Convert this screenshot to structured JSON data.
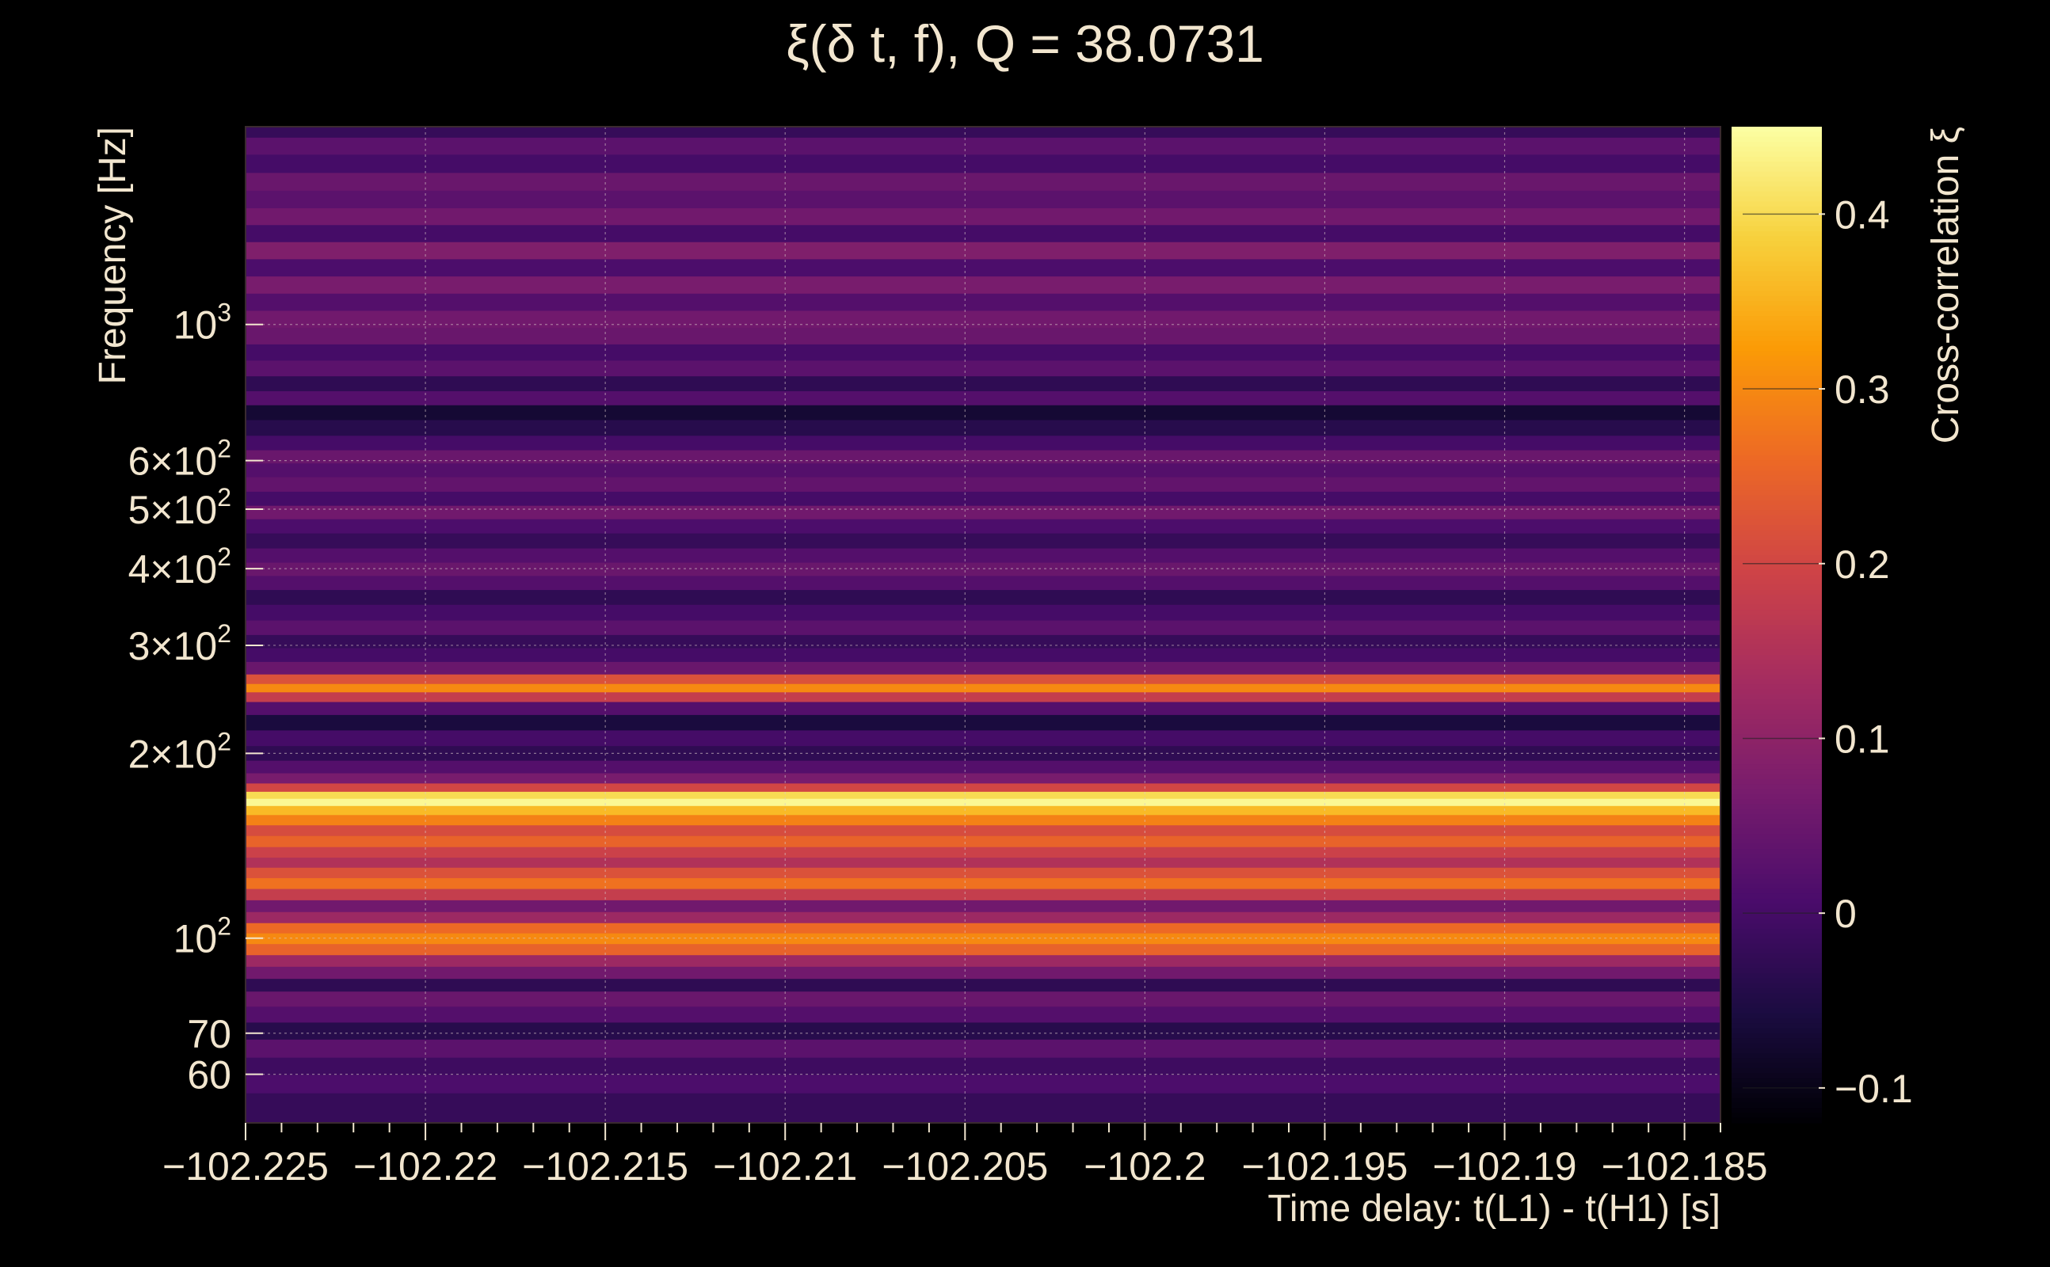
{
  "chart_data": {
    "type": "heatmap",
    "title": "ξ(δ t, f), Q = 38.0731",
    "xlabel": "Time delay: t(L1) - t(H1) [s]",
    "ylabel": "Frequency [Hz]",
    "colorbar_label": "Cross-correlation ξ",
    "xlim": [
      -102.225,
      -102.184
    ],
    "ylim": [
      50,
      2100
    ],
    "yscale": "log",
    "grid": true,
    "x_ticks": [
      {
        "value": -102.225,
        "label": "−102.225"
      },
      {
        "value": -102.22,
        "label": "−102.22"
      },
      {
        "value": -102.215,
        "label": "−102.215"
      },
      {
        "value": -102.21,
        "label": "−102.21"
      },
      {
        "value": -102.205,
        "label": "−102.205"
      },
      {
        "value": -102.2,
        "label": "−102.2"
      },
      {
        "value": -102.195,
        "label": "−102.195"
      },
      {
        "value": -102.19,
        "label": "−102.19"
      },
      {
        "value": -102.185,
        "label": "−102.185"
      }
    ],
    "y_ticks": [
      {
        "value": 60,
        "label": "60"
      },
      {
        "value": 70,
        "label": "70"
      },
      {
        "value": 100,
        "base": "10",
        "exp": "2"
      },
      {
        "value": 200,
        "base": "2×10",
        "exp": "2"
      },
      {
        "value": 300,
        "base": "3×10",
        "exp": "2"
      },
      {
        "value": 400,
        "base": "4×10",
        "exp": "2"
      },
      {
        "value": 500,
        "base": "5×10",
        "exp": "2"
      },
      {
        "value": 600,
        "base": "6×10",
        "exp": "2"
      },
      {
        "value": 1000,
        "base": "10",
        "exp": "3"
      }
    ],
    "colorbar": {
      "range": [
        -0.12,
        0.45
      ],
      "ticks": [
        {
          "value": -0.1,
          "label": "−0.1"
        },
        {
          "value": 0,
          "label": "0"
        },
        {
          "value": 0.1,
          "label": "0.1"
        },
        {
          "value": 0.2,
          "label": "0.2"
        },
        {
          "value": 0.3,
          "label": "0.3"
        },
        {
          "value": 0.4,
          "label": "0.4"
        }
      ],
      "colors": [
        "#000004",
        "#1b0c41",
        "#4a0c6b",
        "#781c6d",
        "#a52c60",
        "#cf4446",
        "#ed6925",
        "#fb9b06",
        "#f7d13d",
        "#fcffa4"
      ]
    },
    "frequency_bands": [
      {
        "f": 54,
        "v": -0.02
      },
      {
        "f": 58,
        "v": 0.01
      },
      {
        "f": 62,
        "v": -0.01
      },
      {
        "f": 66,
        "v": 0.03
      },
      {
        "f": 71,
        "v": -0.04
      },
      {
        "f": 75,
        "v": 0.02
      },
      {
        "f": 80,
        "v": 0.05
      },
      {
        "f": 84,
        "v": -0.03
      },
      {
        "f": 88,
        "v": 0.06
      },
      {
        "f": 92,
        "v": 0.12
      },
      {
        "f": 96,
        "v": 0.25
      },
      {
        "f": 100,
        "v": 0.3
      },
      {
        "f": 104,
        "v": 0.26
      },
      {
        "f": 108,
        "v": 0.12
      },
      {
        "f": 113,
        "v": 0.06
      },
      {
        "f": 118,
        "v": 0.18
      },
      {
        "f": 123,
        "v": 0.27
      },
      {
        "f": 128,
        "v": 0.22
      },
      {
        "f": 133,
        "v": 0.15
      },
      {
        "f": 138,
        "v": 0.19
      },
      {
        "f": 144,
        "v": 0.25
      },
      {
        "f": 150,
        "v": 0.21
      },
      {
        "f": 156,
        "v": 0.29
      },
      {
        "f": 162,
        "v": 0.36
      },
      {
        "f": 167,
        "v": 0.44
      },
      {
        "f": 171,
        "v": 0.4
      },
      {
        "f": 176,
        "v": 0.2
      },
      {
        "f": 182,
        "v": 0.07
      },
      {
        "f": 190,
        "v": 0.02
      },
      {
        "f": 200,
        "v": -0.03
      },
      {
        "f": 212,
        "v": 0.0
      },
      {
        "f": 225,
        "v": -0.06
      },
      {
        "f": 238,
        "v": 0.02
      },
      {
        "f": 248,
        "v": 0.18
      },
      {
        "f": 256,
        "v": 0.3
      },
      {
        "f": 264,
        "v": 0.22
      },
      {
        "f": 275,
        "v": 0.05
      },
      {
        "f": 290,
        "v": 0.0
      },
      {
        "f": 305,
        "v": -0.02
      },
      {
        "f": 320,
        "v": 0.03
      },
      {
        "f": 340,
        "v": 0.0
      },
      {
        "f": 360,
        "v": -0.03
      },
      {
        "f": 380,
        "v": 0.02
      },
      {
        "f": 400,
        "v": 0.05
      },
      {
        "f": 420,
        "v": 0.02
      },
      {
        "f": 445,
        "v": -0.02
      },
      {
        "f": 470,
        "v": 0.01
      },
      {
        "f": 495,
        "v": 0.06
      },
      {
        "f": 520,
        "v": 0.0
      },
      {
        "f": 550,
        "v": 0.04
      },
      {
        "f": 580,
        "v": 0.02
      },
      {
        "f": 610,
        "v": 0.05
      },
      {
        "f": 640,
        "v": 0.0
      },
      {
        "f": 680,
        "v": -0.04
      },
      {
        "f": 720,
        "v": -0.07
      },
      {
        "f": 760,
        "v": 0.02
      },
      {
        "f": 800,
        "v": -0.03
      },
      {
        "f": 850,
        "v": 0.03
      },
      {
        "f": 900,
        "v": 0.0
      },
      {
        "f": 960,
        "v": 0.05
      },
      {
        "f": 1020,
        "v": 0.06
      },
      {
        "f": 1090,
        "v": 0.02
      },
      {
        "f": 1160,
        "v": 0.07
      },
      {
        "f": 1240,
        "v": 0.01
      },
      {
        "f": 1320,
        "v": 0.08
      },
      {
        "f": 1410,
        "v": 0.0
      },
      {
        "f": 1500,
        "v": 0.06
      },
      {
        "f": 1600,
        "v": 0.03
      },
      {
        "f": 1710,
        "v": 0.05
      },
      {
        "f": 1830,
        "v": 0.0
      },
      {
        "f": 1960,
        "v": 0.03
      },
      {
        "f": 2080,
        "v": -0.02
      }
    ]
  }
}
